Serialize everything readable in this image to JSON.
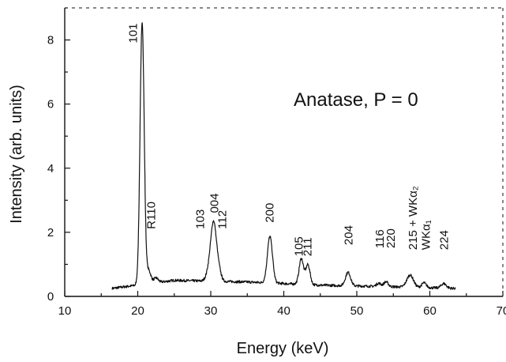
{
  "chart_data": {
    "type": "line",
    "title": "",
    "annotation": "Anatase, P = 0",
    "xlabel": "Energy (keV)",
    "ylabel": "Intensity (arb. units)",
    "xlim": [
      10,
      70
    ],
    "ylim": [
      0,
      9
    ],
    "x_ticks": [
      10,
      20,
      30,
      40,
      50,
      60,
      70
    ],
    "y_ticks": [
      0,
      2,
      4,
      6,
      8
    ],
    "x_minor_step": 5,
    "y_minor_step": 1,
    "grid": false,
    "legend": "none",
    "line_color": "#111111",
    "x_range": [
      16.5,
      63.5
    ],
    "baseline": [
      [
        16.5,
        0.25
      ],
      [
        25,
        0.5
      ],
      [
        35,
        0.45
      ],
      [
        45,
        0.35
      ],
      [
        55,
        0.3
      ],
      [
        63.5,
        0.25
      ]
    ],
    "peaks": [
      {
        "x": 20.6,
        "height": 8.2,
        "width": 0.28,
        "label": "101"
      },
      {
        "x": 21.5,
        "height": 0.4,
        "width": 0.3,
        "label": "R110"
      },
      {
        "x": 22.5,
        "height": 0.15,
        "width": 0.3,
        "label": ""
      },
      {
        "x": 29.9,
        "height": 0.5,
        "width": 0.4,
        "label": "103"
      },
      {
        "x": 30.4,
        "height": 1.55,
        "width": 0.35,
        "label": "004"
      },
      {
        "x": 31.0,
        "height": 0.45,
        "width": 0.35,
        "label": "112"
      },
      {
        "x": 38.1,
        "height": 1.45,
        "width": 0.35,
        "label": "200"
      },
      {
        "x": 42.4,
        "height": 0.8,
        "width": 0.3,
        "label": "105"
      },
      {
        "x": 43.3,
        "height": 0.62,
        "width": 0.3,
        "label": "211"
      },
      {
        "x": 48.8,
        "height": 0.42,
        "width": 0.35,
        "label": "204"
      },
      {
        "x": 53.0,
        "height": 0.1,
        "width": 0.3,
        "label": "116"
      },
      {
        "x": 54.0,
        "height": 0.15,
        "width": 0.3,
        "label": "220"
      },
      {
        "x": 57.3,
        "height": 0.38,
        "width": 0.45,
        "label": "215 + WKα₂"
      },
      {
        "x": 59.2,
        "height": 0.15,
        "width": 0.3,
        "label": "WKα₁"
      },
      {
        "x": 61.9,
        "height": 0.14,
        "width": 0.35,
        "label": "224"
      }
    ],
    "peak_labels": [
      {
        "text": "101",
        "x": 19.9,
        "y": 7.9
      },
      {
        "text": "R110",
        "x": 22.4,
        "y": 2.1
      },
      {
        "text": "103",
        "x": 29.1,
        "y": 2.1
      },
      {
        "text": "004",
        "x": 31.0,
        "y": 2.6
      },
      {
        "text": "112",
        "x": 32.1,
        "y": 2.1
      },
      {
        "text": "200",
        "x": 38.6,
        "y": 2.3
      },
      {
        "text": "105",
        "x": 42.6,
        "y": 1.25
      },
      {
        "text": "211",
        "x": 43.8,
        "y": 1.25
      },
      {
        "text": "204",
        "x": 49.4,
        "y": 1.6
      },
      {
        "text": "116",
        "x": 53.7,
        "y": 1.5
      },
      {
        "text": "220",
        "x": 55.2,
        "y": 1.5
      },
      {
        "text": "215 + WKα₂",
        "x": 58.2,
        "y": 1.45
      },
      {
        "text": "WKα₁",
        "x": 60.0,
        "y": 1.45
      },
      {
        "text": "224",
        "x": 62.5,
        "y": 1.45
      }
    ]
  }
}
